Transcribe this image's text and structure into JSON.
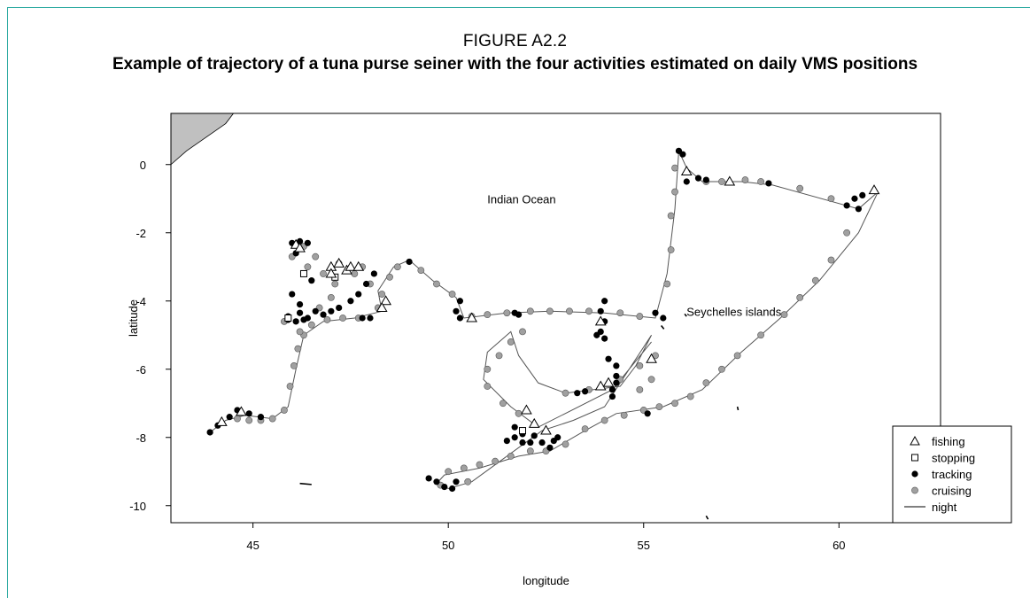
{
  "figure": {
    "label": "FIGURE A2.2",
    "title": "Example of trajectory of a tuna purse seiner with the four activities estimated on daily VMS positions"
  },
  "chart_data": {
    "type": "scatter",
    "title": "",
    "xlabel": "longitude",
    "ylabel": "latitude",
    "xlim": [
      42.9,
      62.6
    ],
    "ylim": [
      -10.5,
      1.5
    ],
    "xticks": [
      45,
      50,
      55,
      60
    ],
    "yticks": [
      0,
      -2,
      -4,
      -6,
      -8,
      -10
    ],
    "grid": false,
    "legend_position": "bottom-right",
    "colors": {
      "land": "#c0c0c0",
      "cruising": "#a0a0a0",
      "tracking": "#000000",
      "line": "#555555"
    },
    "annotations": [
      {
        "text": "Indian Ocean",
        "x": 51.0,
        "y": -1.0
      },
      {
        "text": "Seychelles islands",
        "x": 56.1,
        "y": -4.3
      }
    ],
    "legend": [
      {
        "label": "fishing",
        "marker": "open-triangle"
      },
      {
        "label": "stopping",
        "marker": "open-square"
      },
      {
        "label": "tracking",
        "marker": "filled-circle"
      },
      {
        "label": "cruising",
        "marker": "gray-circle"
      },
      {
        "label": "night",
        "marker": "line"
      }
    ],
    "land": [
      [
        42.9,
        0.0
      ],
      [
        43.3,
        0.4
      ],
      [
        43.8,
        0.8
      ],
      [
        44.3,
        1.2
      ],
      [
        44.5,
        1.5
      ],
      [
        42.9,
        1.5
      ]
    ],
    "islands": [
      {
        "x1": 46.2,
        "y1": -9.35,
        "x2": 46.5,
        "y2": -9.38
      },
      {
        "x1": 55.45,
        "y1": -4.72,
        "x2": 55.52,
        "y2": -4.82
      },
      {
        "x1": 56.05,
        "y1": -4.38,
        "x2": 56.1,
        "y2": -4.45
      },
      {
        "x1": 56.6,
        "y1": -10.3,
        "x2": 56.65,
        "y2": -10.4
      },
      {
        "x1": 57.4,
        "y1": -7.1,
        "x2": 57.42,
        "y2": -7.2
      }
    ],
    "track": [
      [
        43.9,
        -7.85
      ],
      [
        44.3,
        -7.5
      ],
      [
        44.8,
        -7.35
      ],
      [
        45.5,
        -7.45
      ],
      [
        45.9,
        -7.1
      ],
      [
        46.1,
        -6.0
      ],
      [
        46.3,
        -5.0
      ],
      [
        46.8,
        -4.6
      ],
      [
        47.6,
        -4.5
      ],
      [
        48.3,
        -4.3
      ],
      [
        48.2,
        -3.7
      ],
      [
        48.6,
        -3.0
      ],
      [
        49.0,
        -2.8
      ],
      [
        49.6,
        -3.4
      ],
      [
        50.2,
        -3.9
      ],
      [
        50.4,
        -4.5
      ],
      [
        51.5,
        -4.35
      ],
      [
        52.6,
        -4.3
      ],
      [
        54.0,
        -4.35
      ],
      [
        55.3,
        -4.5
      ],
      [
        55.6,
        -3.2
      ],
      [
        55.8,
        -1.3
      ],
      [
        55.9,
        0.4
      ],
      [
        56.1,
        -0.1
      ],
      [
        56.5,
        -0.5
      ],
      [
        57.5,
        -0.5
      ],
      [
        58.3,
        -0.6
      ],
      [
        60.5,
        -1.3
      ],
      [
        61.0,
        -0.8
      ],
      [
        60.5,
        -2.0
      ],
      [
        59.5,
        -3.4
      ],
      [
        58.5,
        -4.5
      ],
      [
        57.5,
        -5.5
      ],
      [
        56.5,
        -6.6
      ],
      [
        55.5,
        -7.1
      ],
      [
        54.3,
        -7.3
      ],
      [
        53.5,
        -7.8
      ],
      [
        52.6,
        -8.4
      ],
      [
        51.8,
        -8.55
      ],
      [
        50.8,
        -8.9
      ],
      [
        49.9,
        -9.1
      ],
      [
        49.7,
        -9.35
      ],
      [
        50.0,
        -9.5
      ],
      [
        50.6,
        -9.3
      ],
      [
        51.2,
        -8.8
      ],
      [
        52.4,
        -7.8
      ],
      [
        53.2,
        -7.5
      ],
      [
        54.0,
        -7.1
      ],
      [
        55.2,
        -5.0
      ],
      [
        54.8,
        -5.9
      ],
      [
        54.4,
        -6.5
      ],
      [
        53.0,
        -6.7
      ],
      [
        52.3,
        -6.4
      ],
      [
        51.8,
        -5.6
      ],
      [
        51.6,
        -4.9
      ],
      [
        51.0,
        -5.5
      ],
      [
        50.9,
        -6.3
      ],
      [
        51.6,
        -7.1
      ],
      [
        52.3,
        -7.7
      ],
      [
        54.2,
        -6.6
      ],
      [
        55.2,
        -5.2
      ]
    ],
    "series": {
      "cruising": [
        [
          44.6,
          -7.45
        ],
        [
          44.9,
          -7.5
        ],
        [
          45.2,
          -7.5
        ],
        [
          45.5,
          -7.45
        ],
        [
          45.8,
          -7.2
        ],
        [
          45.95,
          -6.5
        ],
        [
          46.05,
          -5.9
        ],
        [
          46.15,
          -5.4
        ],
        [
          46.3,
          -5.0
        ],
        [
          46.5,
          -4.7
        ],
        [
          46.9,
          -4.55
        ],
        [
          47.3,
          -4.5
        ],
        [
          47.7,
          -4.5
        ],
        [
          46.7,
          -4.2
        ],
        [
          47.0,
          -3.9
        ],
        [
          47.1,
          -3.5
        ],
        [
          46.8,
          -3.2
        ],
        [
          46.4,
          -3.0
        ],
        [
          46.0,
          -2.7
        ],
        [
          46.3,
          -2.4
        ],
        [
          46.6,
          -2.7
        ],
        [
          47.2,
          -2.9
        ],
        [
          47.6,
          -3.2
        ],
        [
          48.0,
          -3.5
        ],
        [
          48.3,
          -3.8
        ],
        [
          48.5,
          -3.3
        ],
        [
          48.7,
          -3.0
        ],
        [
          49.3,
          -3.1
        ],
        [
          49.7,
          -3.5
        ],
        [
          50.1,
          -3.8
        ],
        [
          50.6,
          -4.45
        ],
        [
          51.0,
          -4.4
        ],
        [
          51.5,
          -4.35
        ],
        [
          52.1,
          -4.3
        ],
        [
          52.6,
          -4.3
        ],
        [
          53.1,
          -4.3
        ],
        [
          53.6,
          -4.3
        ],
        [
          54.4,
          -4.35
        ],
        [
          54.9,
          -4.45
        ],
        [
          55.6,
          -3.5
        ],
        [
          55.7,
          -2.5
        ],
        [
          55.7,
          -1.5
        ],
        [
          55.8,
          -0.8
        ],
        [
          55.8,
          -0.1
        ],
        [
          56.6,
          -0.5
        ],
        [
          57.0,
          -0.5
        ],
        [
          57.6,
          -0.45
        ],
        [
          58.0,
          -0.5
        ],
        [
          59.0,
          -0.7
        ],
        [
          59.8,
          -1.0
        ],
        [
          60.2,
          -2.0
        ],
        [
          59.8,
          -2.8
        ],
        [
          59.4,
          -3.4
        ],
        [
          59.0,
          -3.9
        ],
        [
          58.6,
          -4.4
        ],
        [
          58.0,
          -5.0
        ],
        [
          57.4,
          -5.6
        ],
        [
          57.0,
          -6.0
        ],
        [
          56.6,
          -6.4
        ],
        [
          56.2,
          -6.8
        ],
        [
          55.8,
          -7.0
        ],
        [
          55.4,
          -7.1
        ],
        [
          55.0,
          -7.2
        ],
        [
          54.5,
          -7.35
        ],
        [
          54.0,
          -7.5
        ],
        [
          53.5,
          -7.75
        ],
        [
          53.0,
          -8.2
        ],
        [
          52.5,
          -8.4
        ],
        [
          52.1,
          -8.4
        ],
        [
          51.6,
          -8.55
        ],
        [
          51.2,
          -8.7
        ],
        [
          50.8,
          -8.8
        ],
        [
          50.4,
          -8.9
        ],
        [
          50.0,
          -9.0
        ],
        [
          51.9,
          -4.9
        ],
        [
          51.6,
          -5.2
        ],
        [
          51.3,
          -5.6
        ],
        [
          51.0,
          -6.0
        ],
        [
          51.0,
          -6.5
        ],
        [
          51.4,
          -7.0
        ],
        [
          51.8,
          -7.3
        ],
        [
          53.0,
          -6.7
        ],
        [
          53.6,
          -6.6
        ],
        [
          54.4,
          -6.3
        ],
        [
          54.9,
          -5.9
        ],
        [
          46.2,
          -4.9
        ],
        [
          45.8,
          -4.6
        ],
        [
          47.8,
          -3.0
        ],
        [
          48.2,
          -4.2
        ],
        [
          50.5,
          -9.3
        ],
        [
          49.8,
          -9.4
        ],
        [
          54.9,
          -6.6
        ],
        [
          55.2,
          -6.3
        ],
        [
          55.3,
          -5.6
        ]
      ],
      "tracking": [
        [
          43.9,
          -7.85
        ],
        [
          44.1,
          -7.65
        ],
        [
          44.4,
          -7.4
        ],
        [
          44.6,
          -7.2
        ],
        [
          44.9,
          -7.3
        ],
        [
          45.2,
          -7.4
        ],
        [
          45.9,
          -4.55
        ],
        [
          46.1,
          -4.6
        ],
        [
          46.4,
          -4.5
        ],
        [
          46.6,
          -4.3
        ],
        [
          46.8,
          -4.4
        ],
        [
          47.0,
          -4.3
        ],
        [
          47.2,
          -4.2
        ],
        [
          47.5,
          -4.0
        ],
        [
          47.7,
          -3.8
        ],
        [
          47.9,
          -3.5
        ],
        [
          48.1,
          -3.2
        ],
        [
          48.0,
          -4.5
        ],
        [
          47.8,
          -4.5
        ],
        [
          46.2,
          -4.35
        ],
        [
          46.3,
          -4.55
        ],
        [
          45.9,
          -4.45
        ],
        [
          46.1,
          -2.6
        ],
        [
          46.0,
          -2.3
        ],
        [
          46.2,
          -2.25
        ],
        [
          46.4,
          -2.3
        ],
        [
          46.0,
          -3.8
        ],
        [
          46.2,
          -4.1
        ],
        [
          46.5,
          -3.4
        ],
        [
          49.0,
          -2.85
        ],
        [
          50.3,
          -4.0
        ],
        [
          50.2,
          -4.3
        ],
        [
          50.3,
          -4.5
        ],
        [
          51.7,
          -4.35
        ],
        [
          51.8,
          -4.4
        ],
        [
          53.9,
          -4.3
        ],
        [
          54.0,
          -4.0
        ],
        [
          54.0,
          -4.6
        ],
        [
          53.9,
          -4.9
        ],
        [
          54.0,
          -5.1
        ],
        [
          53.8,
          -5.0
        ],
        [
          55.3,
          -4.35
        ],
        [
          55.5,
          -4.5
        ],
        [
          55.9,
          0.4
        ],
        [
          56.0,
          0.3
        ],
        [
          56.1,
          -0.5
        ],
        [
          56.4,
          -0.4
        ],
        [
          56.6,
          -0.45
        ],
        [
          58.2,
          -0.55
        ],
        [
          60.2,
          -1.2
        ],
        [
          60.5,
          -1.3
        ],
        [
          60.4,
          -1.0
        ],
        [
          60.6,
          -0.9
        ],
        [
          54.2,
          -6.6
        ],
        [
          54.3,
          -6.4
        ],
        [
          54.1,
          -5.7
        ],
        [
          54.3,
          -5.9
        ],
        [
          54.3,
          -6.2
        ],
        [
          53.3,
          -6.7
        ],
        [
          53.5,
          -6.65
        ],
        [
          52.7,
          -8.1
        ],
        [
          52.8,
          -8.0
        ],
        [
          52.6,
          -8.3
        ],
        [
          52.4,
          -8.15
        ],
        [
          52.2,
          -7.95
        ],
        [
          51.9,
          -7.9
        ],
        [
          51.7,
          -8.0
        ],
        [
          51.9,
          -8.15
        ],
        [
          52.1,
          -8.15
        ],
        [
          51.5,
          -8.1
        ],
        [
          51.7,
          -7.7
        ],
        [
          49.5,
          -9.2
        ],
        [
          49.7,
          -9.3
        ],
        [
          49.9,
          -9.45
        ],
        [
          50.1,
          -9.5
        ],
        [
          50.2,
          -9.3
        ],
        [
          55.1,
          -7.3
        ],
        [
          54.2,
          -6.8
        ]
      ],
      "fishing": [
        [
          44.2,
          -7.55
        ],
        [
          44.7,
          -7.25
        ],
        [
          46.1,
          -2.35
        ],
        [
          46.2,
          -2.45
        ],
        [
          47.0,
          -3.0
        ],
        [
          47.2,
          -2.9
        ],
        [
          47.4,
          -3.1
        ],
        [
          47.5,
          -3.0
        ],
        [
          47.7,
          -3.0
        ],
        [
          48.4,
          -4.0
        ],
        [
          48.3,
          -4.2
        ],
        [
          53.9,
          -4.6
        ],
        [
          53.9,
          -6.5
        ],
        [
          54.1,
          -6.4
        ],
        [
          52.0,
          -7.2
        ],
        [
          52.2,
          -7.6
        ],
        [
          52.5,
          -7.8
        ],
        [
          50.6,
          -4.5
        ],
        [
          56.1,
          -0.2
        ],
        [
          57.2,
          -0.5
        ],
        [
          60.9,
          -0.75
        ],
        [
          55.2,
          -5.7
        ],
        [
          47.0,
          -3.2
        ]
      ],
      "stopping": [
        [
          46.3,
          -3.2
        ],
        [
          51.9,
          -7.8
        ],
        [
          45.9,
          -4.5
        ],
        [
          47.1,
          -3.3
        ]
      ]
    }
  }
}
